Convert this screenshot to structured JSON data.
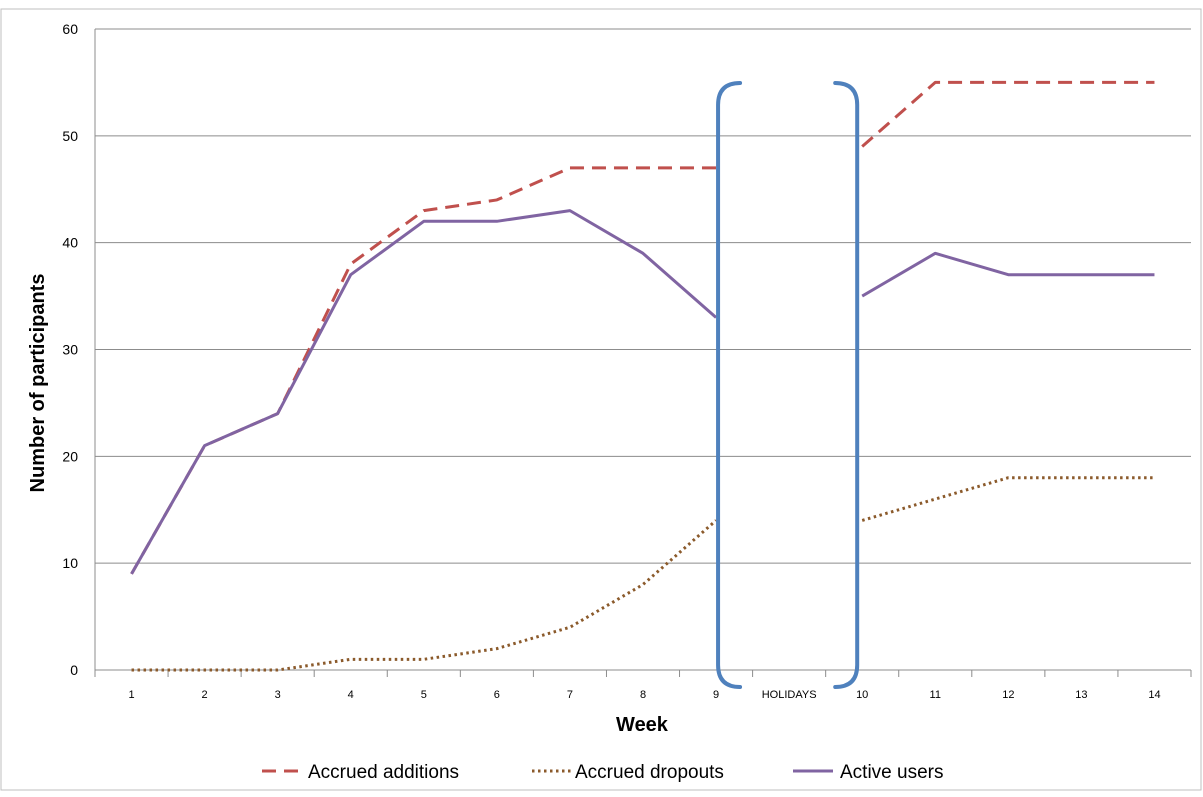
{
  "chart_data": {
    "type": "line",
    "title": "",
    "xlabel": "Week",
    "ylabel": "Number of participants",
    "ylim": [
      0,
      60
    ],
    "yticks": [
      0,
      10,
      20,
      30,
      40,
      50,
      60
    ],
    "categories": [
      "1",
      "2",
      "3",
      "4",
      "5",
      "6",
      "7",
      "8",
      "9",
      "HOLIDAYS",
      "10",
      "11",
      "12",
      "13",
      "14"
    ],
    "series": [
      {
        "name": "Accrued additions",
        "color": "#c0504d",
        "style": "dashed",
        "values": [
          9,
          21,
          24,
          38,
          43,
          44,
          47,
          47,
          47,
          null,
          49,
          55,
          55,
          55,
          55
        ]
      },
      {
        "name": "Accrued dropouts",
        "color": "#8b5a2b",
        "style": "dotted",
        "values": [
          0,
          0,
          0,
          1,
          1,
          2,
          4,
          8,
          14,
          null,
          14,
          16,
          18,
          18,
          18
        ]
      },
      {
        "name": "Active users",
        "color": "#8064a2",
        "style": "solid",
        "values": [
          9,
          21,
          24,
          37,
          42,
          42,
          43,
          39,
          33,
          null,
          35,
          39,
          37,
          37,
          37
        ]
      }
    ],
    "grid": true,
    "legend": "bottom",
    "annotation": {
      "type": "bracket",
      "around_category": "HOLIDAYS",
      "color": "#4f81bd"
    }
  }
}
